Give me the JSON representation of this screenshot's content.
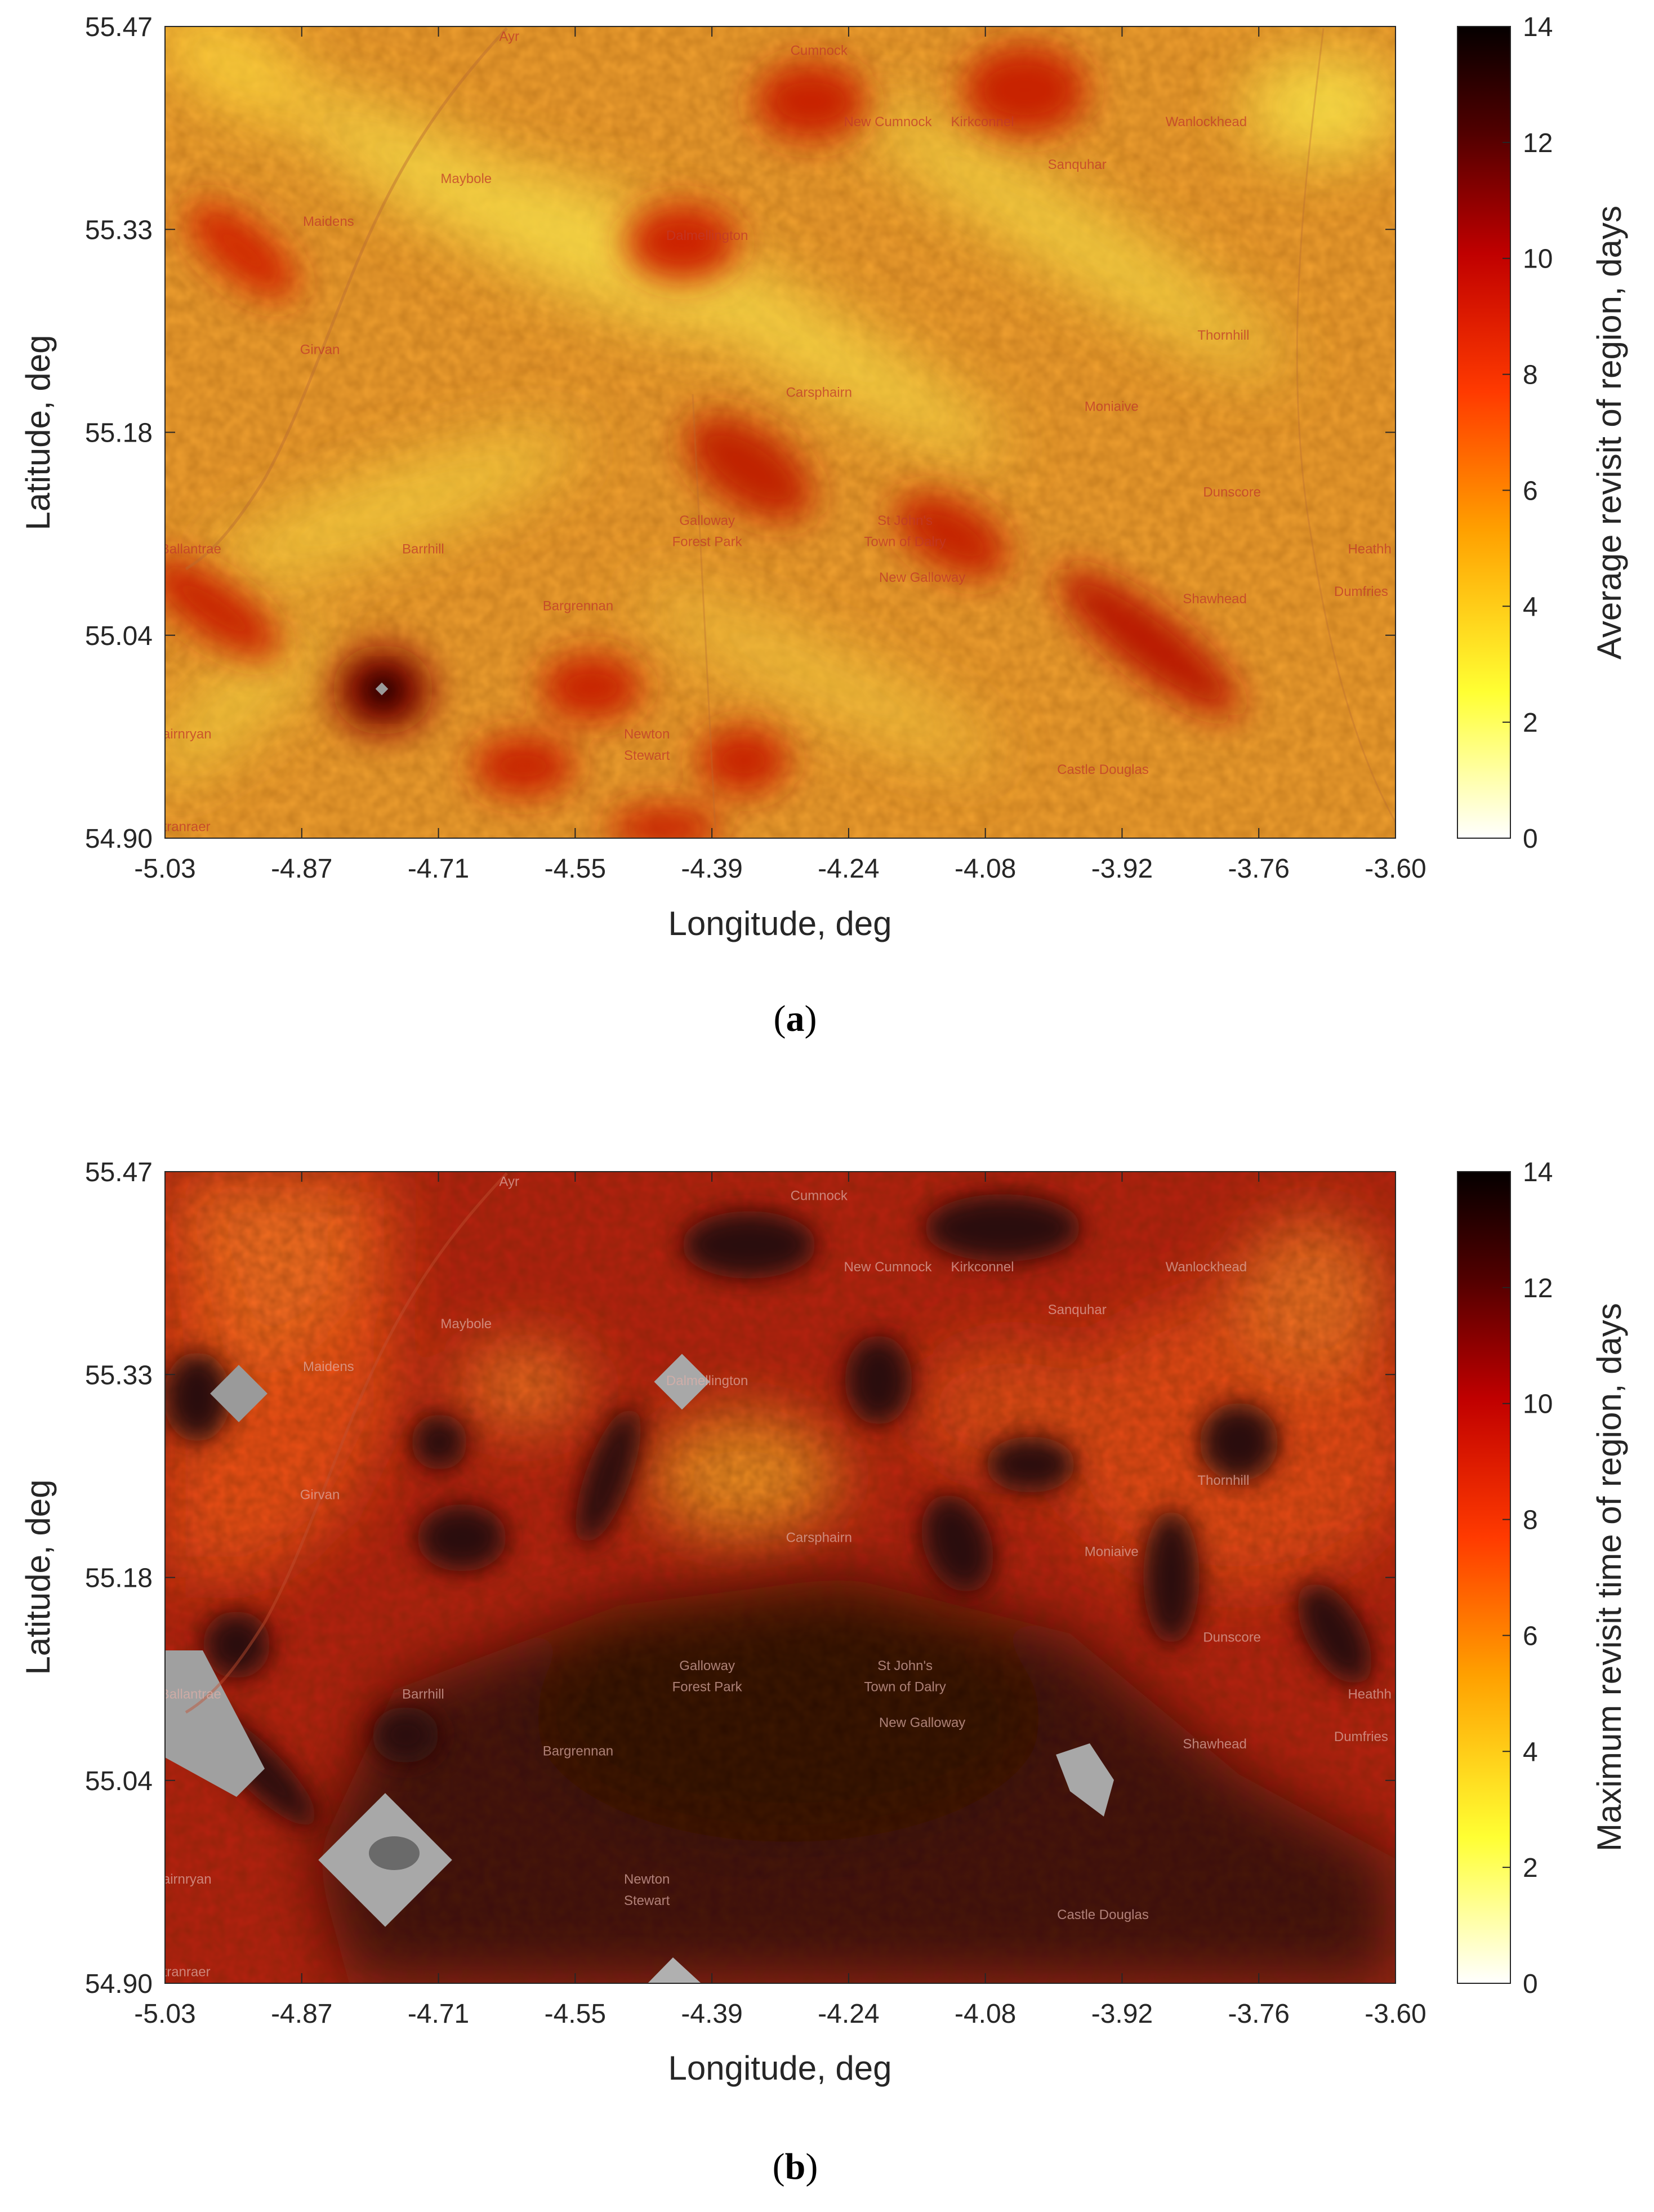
{
  "panels": [
    {
      "id": "a",
      "label": "a",
      "xlabel": "Longitude, deg",
      "ylabel": "Latitude, deg",
      "x_ticks": [
        "-5.03",
        "-4.87",
        "-4.71",
        "-4.55",
        "-4.39",
        "-4.24",
        "-4.08",
        "-3.92",
        "-3.76",
        "-3.60"
      ],
      "y_ticks": [
        "55.47",
        "55.33",
        "55.18",
        "55.04",
        "54.90"
      ],
      "colorbar": {
        "label": "Average revisit of region, days",
        "ticks": [
          "14",
          "12",
          "10",
          "8",
          "6",
          "4",
          "2",
          "0"
        ],
        "range": [
          0,
          14
        ]
      }
    },
    {
      "id": "b",
      "label": "b",
      "xlabel": "Longitude, deg",
      "ylabel": "Latitude, deg",
      "x_ticks": [
        "-5.03",
        "-4.87",
        "-4.71",
        "-4.55",
        "-4.39",
        "-4.24",
        "-4.08",
        "-3.92",
        "-3.76",
        "-3.60"
      ],
      "y_ticks": [
        "55.47",
        "55.33",
        "55.18",
        "55.04",
        "54.90"
      ],
      "colorbar": {
        "label": "Maximum revisit time of region, days",
        "ticks": [
          "14",
          "12",
          "10",
          "8",
          "6",
          "4",
          "2",
          "0"
        ],
        "range": [
          0,
          14
        ]
      }
    }
  ],
  "map_places": [
    {
      "name": "Ayr",
      "lon": -4.63,
      "lat": 55.46
    },
    {
      "name": "Cumnock",
      "lon": -4.27,
      "lat": 55.45
    },
    {
      "name": "New Cumnock",
      "lon": -4.19,
      "lat": 55.4
    },
    {
      "name": "Kirkconnel",
      "lon": -4.08,
      "lat": 55.4
    },
    {
      "name": "Wanlockhead",
      "lon": -3.82,
      "lat": 55.4
    },
    {
      "name": "Sanquhar",
      "lon": -3.97,
      "lat": 55.37
    },
    {
      "name": "Maybole",
      "lon": -4.68,
      "lat": 55.36
    },
    {
      "name": "Maidens",
      "lon": -4.84,
      "lat": 55.33
    },
    {
      "name": "Dalmellington",
      "lon": -4.4,
      "lat": 55.32
    },
    {
      "name": "Thornhill",
      "lon": -3.8,
      "lat": 55.25
    },
    {
      "name": "Girvan",
      "lon": -4.85,
      "lat": 55.24
    },
    {
      "name": "Carsphairn",
      "lon": -4.27,
      "lat": 55.21
    },
    {
      "name": "Moniaive",
      "lon": -3.93,
      "lat": 55.2
    },
    {
      "name": "Dunscore",
      "lon": -3.79,
      "lat": 55.14
    },
    {
      "name": "Galloway",
      "lon": -4.4,
      "lat": 55.12
    },
    {
      "name": "Forest Park",
      "lon": -4.4,
      "lat": 55.105
    },
    {
      "name": "St John's",
      "lon": -4.17,
      "lat": 55.12
    },
    {
      "name": "Town of Dalry",
      "lon": -4.17,
      "lat": 55.105
    },
    {
      "name": "Ballantrae",
      "lon": -5.0,
      "lat": 55.1
    },
    {
      "name": "Barrhill",
      "lon": -4.73,
      "lat": 55.1
    },
    {
      "name": "Heathh",
      "lon": -3.63,
      "lat": 55.1
    },
    {
      "name": "New Galloway",
      "lon": -4.15,
      "lat": 55.08
    },
    {
      "name": "Dumfries",
      "lon": -3.64,
      "lat": 55.07
    },
    {
      "name": "Bargrennan",
      "lon": -4.55,
      "lat": 55.06
    },
    {
      "name": "Shawhead",
      "lon": -3.81,
      "lat": 55.065
    },
    {
      "name": "Cairnryan",
      "lon": -5.01,
      "lat": 54.97
    },
    {
      "name": "Newton",
      "lon": -4.47,
      "lat": 54.97
    },
    {
      "name": "Stewart",
      "lon": -4.47,
      "lat": 54.955
    },
    {
      "name": "Castle Douglas",
      "lon": -3.94,
      "lat": 54.945
    },
    {
      "name": "Stranraer",
      "lon": -5.01,
      "lat": 54.905
    }
  ]
}
